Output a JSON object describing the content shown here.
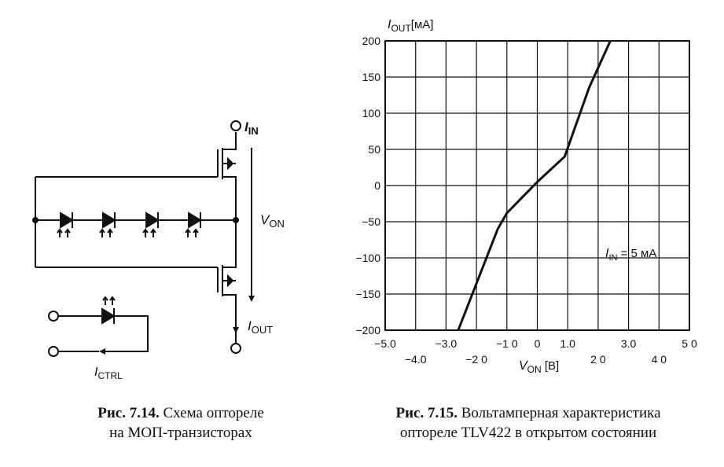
{
  "circuit": {
    "label_in_main": "I",
    "label_in_sub": "IN",
    "label_von_main": "V",
    "label_von_sub": "ON",
    "label_out_main": "I",
    "label_out_sub": "OUT",
    "label_ctrl_main": "I",
    "label_ctrl_sub": "CTRL"
  },
  "chart_data": {
    "type": "line",
    "ylabel_main": "I",
    "ylabel_sub": "OUT",
    "ylabel_unit": "[мА]",
    "xlabel_main": "V",
    "xlabel_sub": "ON",
    "xlabel_unit": " [В]",
    "xlim": [
      -5.0,
      5.0
    ],
    "ylim": [
      -200,
      200
    ],
    "grid": true,
    "x_ticks_upper": [
      "−5.0",
      "−3.0",
      "−1 0",
      "0",
      "1.0",
      "3.0",
      "5 0"
    ],
    "x_ticks_upper_pos": [
      -5,
      -3,
      -1,
      0,
      1,
      3,
      5
    ],
    "x_ticks_lower": [
      "−4.0",
      "−2 0",
      "2 0",
      "4 0"
    ],
    "x_ticks_lower_pos": [
      -4,
      -2,
      2,
      4
    ],
    "y_ticks": [
      "200",
      "150",
      "100",
      "50",
      "0",
      "−50",
      "−100",
      "−150",
      "−200"
    ],
    "y_ticks_pos": [
      200,
      150,
      100,
      50,
      0,
      -50,
      -100,
      -150,
      -200
    ],
    "annotation_main": "I",
    "annotation_sub": "IN",
    "annotation_rest": " = 5 мА",
    "series": [
      {
        "x": [
          -2.6,
          -1.3,
          -1.0,
          0.0,
          0.9,
          1.7,
          2.4
        ],
        "y": [
          -200,
          -60,
          -38,
          5,
          40,
          135,
          200
        ]
      }
    ]
  },
  "captions": {
    "left_bold": "Рис. 7.14.",
    "left_text1": " Схема оптореле",
    "left_text2": "на МОП-транзисторах",
    "right_bold": "Рис. 7.15.",
    "right_text1": " Вольтамперная характеристика",
    "right_text2": "оптореле TLV422 в открытом состоянии"
  }
}
